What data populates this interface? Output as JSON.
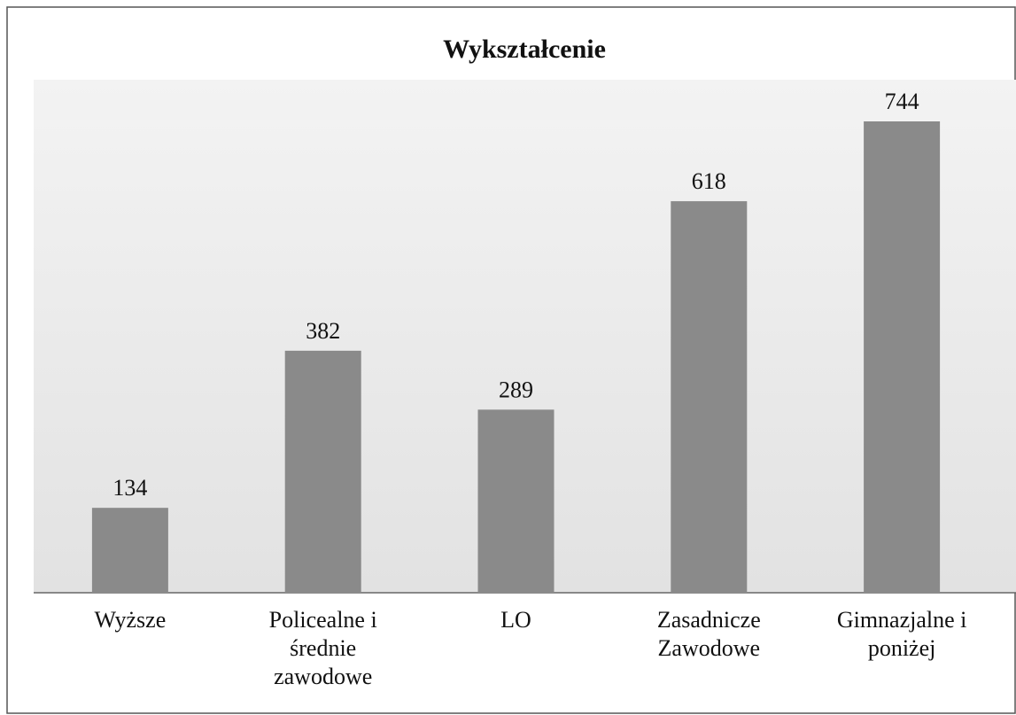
{
  "chart_data": {
    "type": "bar",
    "title": "Wykształcenie",
    "categories": [
      "Wyższe",
      "Policealne i średnie zawodowe",
      "LO",
      "Zasadnicze Zawodowe",
      "Gimnazjalne i poniżej"
    ],
    "values": [
      134,
      382,
      289,
      618,
      744
    ],
    "color": "#8a8a8a"
  }
}
